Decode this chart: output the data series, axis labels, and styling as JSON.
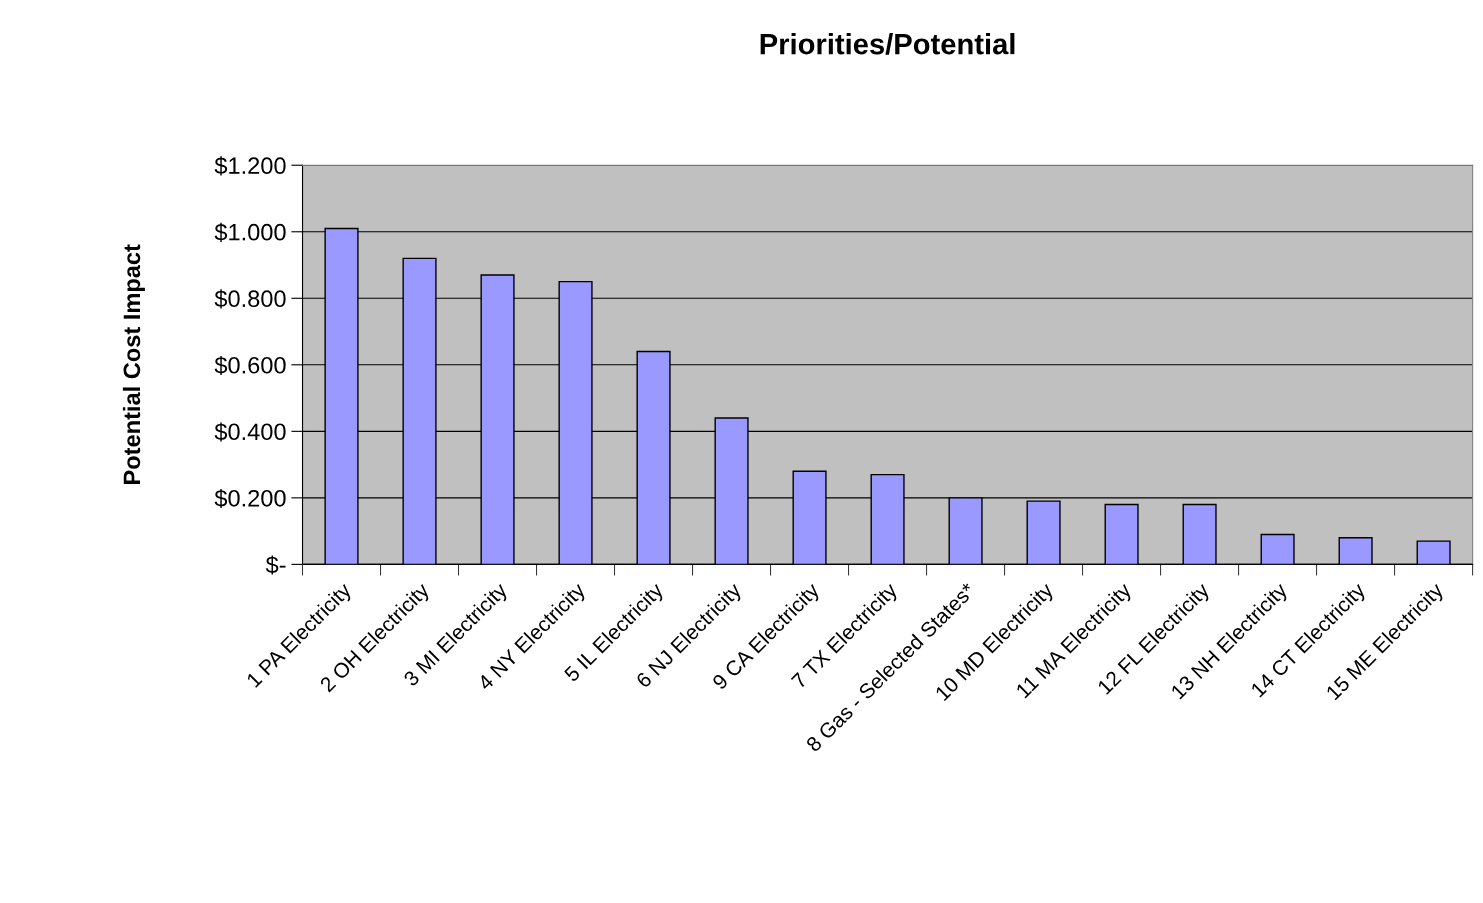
{
  "chart_data": {
    "type": "bar",
    "title": "Priorities/Potential",
    "ylabel": "Potential Cost Impact",
    "categories": [
      "1 PA Electricity",
      "2 OH Electricity",
      "3 MI Electricity",
      "4 NY Electricity",
      "5 IL Electricity",
      "6 NJ Electricity",
      "9 CA Electricity",
      "7 TX Electricity",
      "8 Gas - Selected States*",
      "10 MD Electricity",
      "11 MA Electricity",
      "12 FL Electricity",
      "13 NH Electricity",
      "14 CT Electricity",
      "15 ME Electricity"
    ],
    "values": [
      1.01,
      0.92,
      0.87,
      0.85,
      0.64,
      0.44,
      0.28,
      0.27,
      0.2,
      0.19,
      0.18,
      0.18,
      0.09,
      0.08,
      0.07
    ],
    "color": "#9999ff",
    "ylim": [
      0,
      1.2
    ],
    "yticks": [
      {
        "value": 0,
        "label": "$-"
      },
      {
        "value": 0.2,
        "label": "$0.200"
      },
      {
        "value": 0.4,
        "label": "$0.400"
      },
      {
        "value": 0.6,
        "label": "$0.600"
      },
      {
        "value": 0.8,
        "label": "$0.800"
      },
      {
        "value": 1.0,
        "label": "$1.000"
      },
      {
        "value": 1.2,
        "label": "$1.200"
      }
    ],
    "grid": "y",
    "legend": false
  }
}
